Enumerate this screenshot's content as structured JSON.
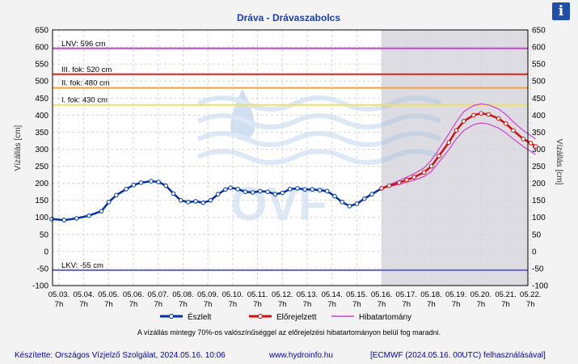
{
  "chart_data": {
    "type": "line",
    "title": "Dráva - Drávaszabolcs",
    "ylabel": "Vízállás [cm]",
    "ylabel_right": "Vízállás [cm]",
    "ylim": [
      -100,
      650
    ],
    "yticks": [
      -100,
      -50,
      0,
      50,
      100,
      150,
      200,
      250,
      300,
      350,
      400,
      450,
      500,
      550,
      600,
      650
    ],
    "xlim": [
      0,
      19.5
    ],
    "x_unit": "days since 05.03. 00:00",
    "xtick_dates": [
      "05.03.",
      "05.04.",
      "05.05.",
      "05.06.",
      "05.07.",
      "05.08.",
      "05.09.",
      "05.10.",
      "05.11.",
      "05.12.",
      "05.13.",
      "05.14.",
      "05.15.",
      "05.16.",
      "05.17.",
      "05.18.",
      "05.19.",
      "05.20.",
      "05.21.",
      "05.22."
    ],
    "xtick_time": "7h",
    "forecast_start": 13.29,
    "grid": true,
    "thresholds": [
      {
        "label": "LNV: 596 cm",
        "value": 596,
        "color": "#cc44cc"
      },
      {
        "label": "III. fok: 520 cm",
        "value": 520,
        "color": "#e02020"
      },
      {
        "label": "II. fok: 480 cm",
        "value": 480,
        "color": "#f0a040"
      },
      {
        "label": "I. fok: 430 cm",
        "value": 430,
        "color": "#f0e060"
      },
      {
        "label": "LKV: -55 cm",
        "value": -55,
        "color": "#6a6ae0"
      }
    ],
    "series": [
      {
        "name": "Észlelt",
        "color": "#0033aa",
        "x": [
          0,
          0.5,
          1,
          1.5,
          2,
          2.3,
          2.6,
          3,
          3.3,
          3.6,
          4,
          4.3,
          4.6,
          4.9,
          5.2,
          5.5,
          5.8,
          6.1,
          6.4,
          6.7,
          7,
          7.2,
          7.5,
          7.8,
          8.1,
          8.4,
          8.7,
          9,
          9.3,
          9.6,
          9.9,
          10.2,
          10.5,
          10.8,
          11.1,
          11.4,
          11.7,
          12,
          12.3,
          12.6,
          12.9,
          13.29
        ],
        "y": [
          95,
          92,
          97,
          105,
          118,
          145,
          165,
          183,
          195,
          202,
          206,
          204,
          193,
          170,
          150,
          145,
          147,
          143,
          150,
          168,
          182,
          187,
          183,
          175,
          173,
          177,
          175,
          168,
          172,
          183,
          185,
          182,
          182,
          180,
          177,
          162,
          145,
          133,
          140,
          155,
          168,
          185
        ]
      },
      {
        "name": "Előrejelzett",
        "color": "#d01010",
        "x": [
          13.29,
          13.6,
          14,
          14.3,
          14.6,
          15,
          15.3,
          15.6,
          16,
          16.3,
          16.6,
          17,
          17.3,
          17.6,
          18,
          18.3,
          18.6,
          19,
          19.3,
          19.5
        ],
        "y": [
          185,
          193,
          202,
          210,
          218,
          232,
          250,
          280,
          320,
          355,
          382,
          400,
          405,
          402,
          390,
          375,
          355,
          330,
          318,
          308
        ]
      },
      {
        "name": "Hibatartomány",
        "color": "#d040d0",
        "x": [
          13.29,
          13.6,
          14,
          14.3,
          14.6,
          15,
          15.3,
          15.6,
          16,
          16.3,
          16.6,
          17,
          17.3,
          17.6,
          18,
          18.3,
          18.6,
          19,
          19.3,
          19.5
        ],
        "upper": [
          185,
          196,
          208,
          218,
          228,
          245,
          268,
          300,
          345,
          380,
          410,
          428,
          433,
          430,
          418,
          402,
          380,
          355,
          340,
          330
        ],
        "lower": [
          185,
          190,
          197,
          203,
          209,
          220,
          235,
          262,
          298,
          330,
          355,
          372,
          377,
          374,
          362,
          348,
          330,
          308,
          294,
          284
        ]
      }
    ]
  },
  "note": "A vízállás mintegy 70%-os valószínűséggel az előrejelzési hibatartományon belül fog maradni.",
  "footer": {
    "left": "Készítette: Országos Vízjelző Szolgálat, 2024.05.16. 10:06",
    "center": "www.hydroinfo.hu",
    "right": "[ECMWF (2024.05.16. 00UTC) felhasználásával]"
  },
  "info_icon": "i"
}
